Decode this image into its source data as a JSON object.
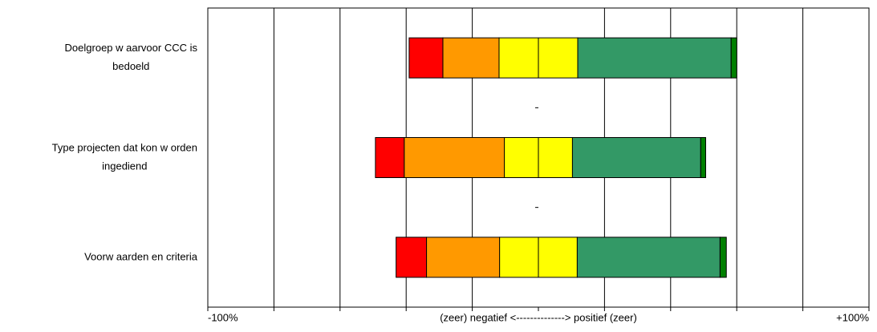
{
  "chart_data": {
    "type": "diverging_bar",
    "categories": [
      [
        "Doelgroep w aarvoor CCC is",
        "bedoeld"
      ],
      [
        "Type projecten dat kon w orden",
        "ingediend"
      ],
      [
        "Voorw aarden en criteria"
      ]
    ],
    "series": [
      {
        "color": "#ff0000",
        "side": "negative",
        "values": [
          10.2,
          8.7,
          9.2
        ]
      },
      {
        "color": "#ff9900",
        "side": "negative",
        "values": [
          17,
          30.3,
          22.1
        ]
      },
      {
        "color": "#ffff00",
        "side": "neutral",
        "values": [
          23.8,
          20.6,
          23.5
        ]
      },
      {
        "color": "#339966",
        "side": "positive",
        "values": [
          46.4,
          38.8,
          43.2
        ]
      },
      {
        "color": "#008000",
        "side": "positive",
        "values": [
          1.7,
          1.5,
          1.9
        ]
      }
    ],
    "xlim": [
      -100,
      100
    ],
    "xticks": [
      {
        "value": -100,
        "label": "-100%"
      },
      -80,
      -60,
      -40,
      -20,
      {
        "value": 0,
        "label": "(zeer) negatief <--------------> positief (zeer)"
      },
      20,
      40,
      60,
      80,
      {
        "value": 100,
        "label": "+100%"
      }
    ],
    "grid": true
  }
}
